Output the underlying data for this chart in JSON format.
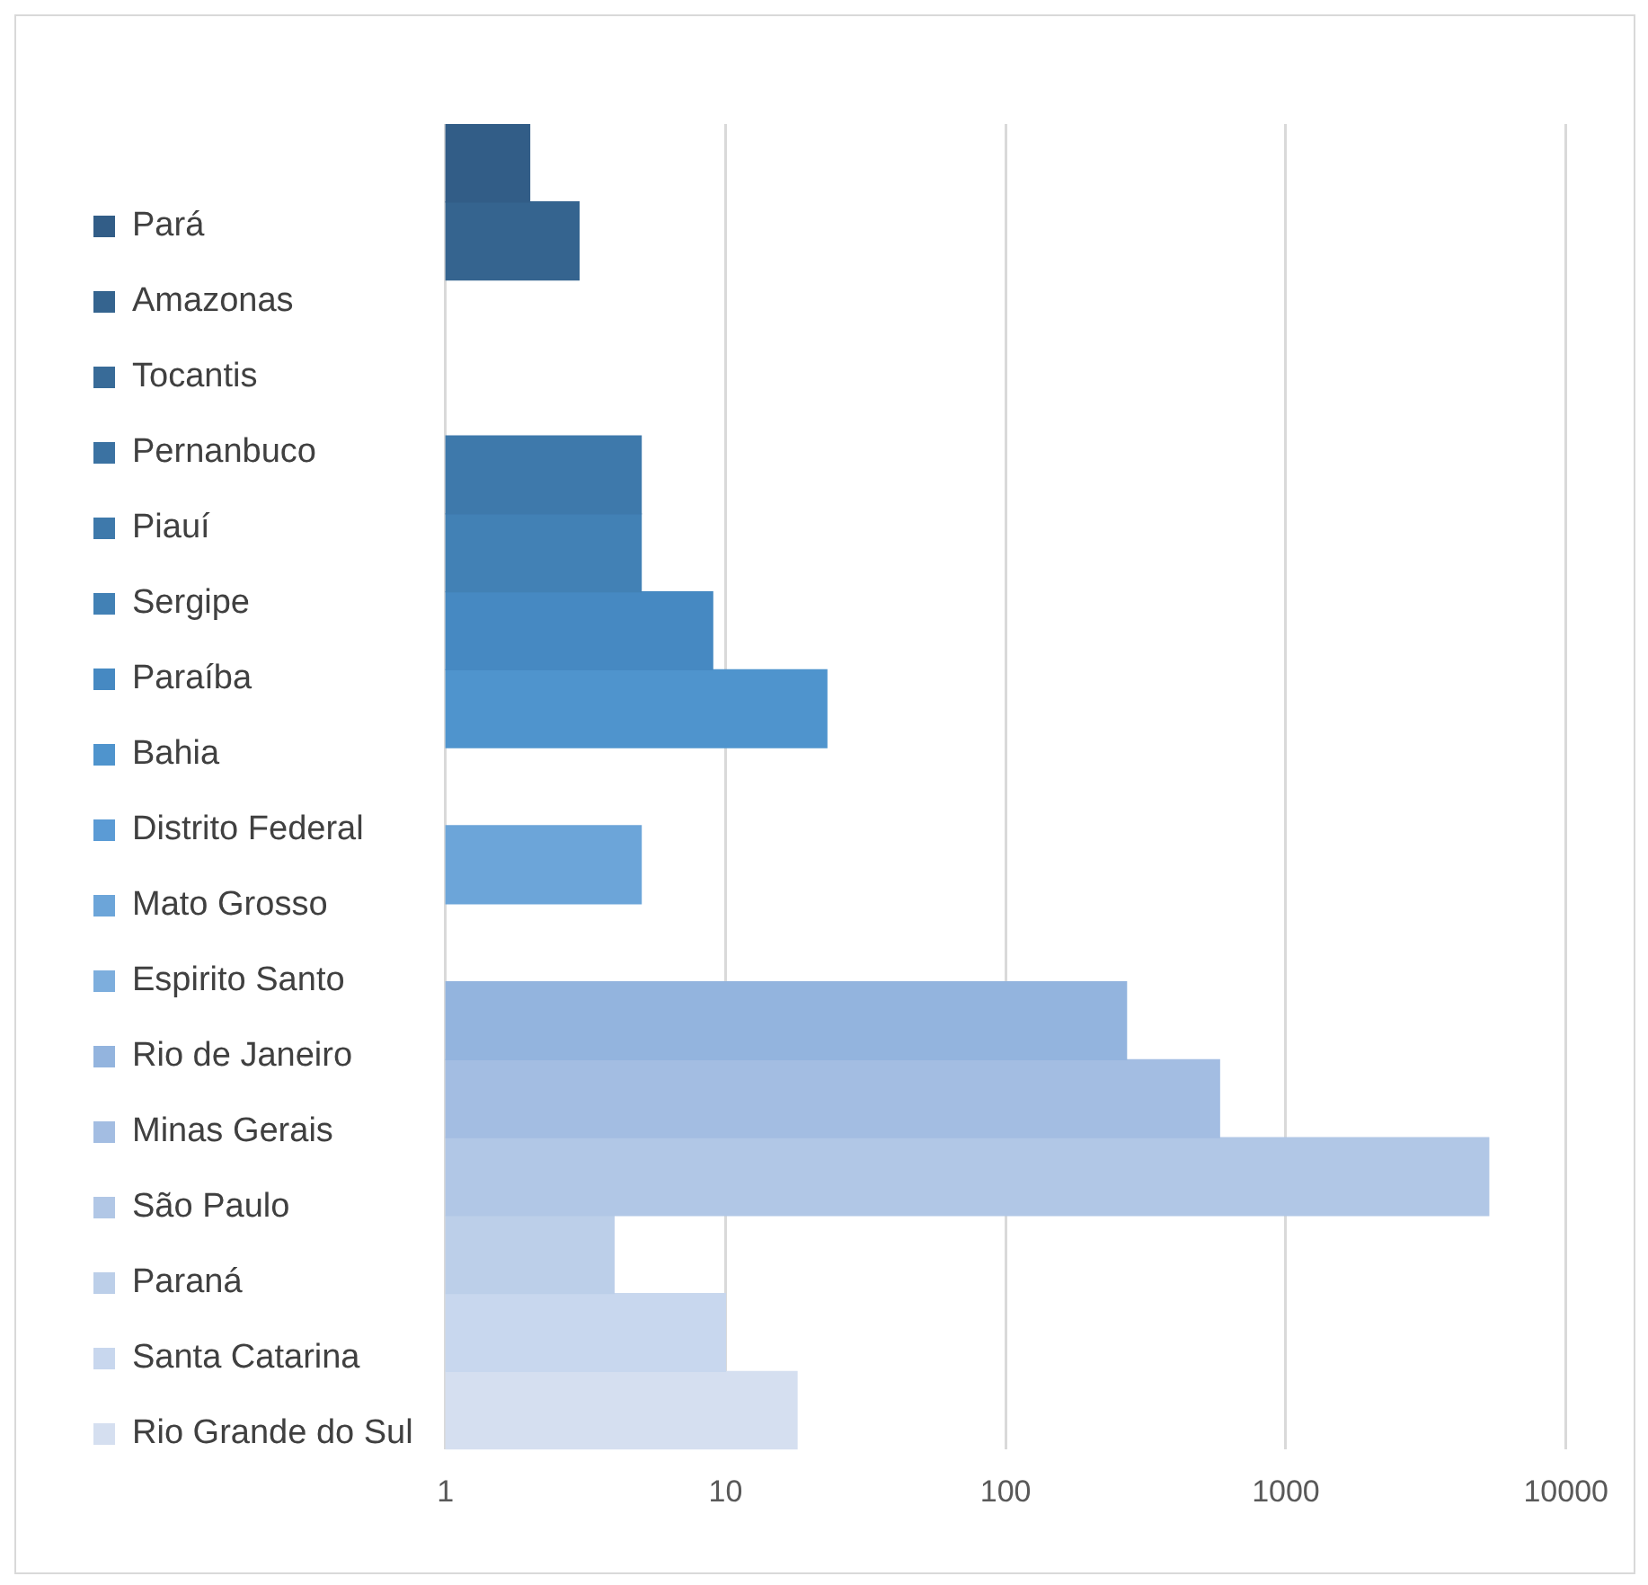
{
  "chart_data": {
    "type": "bar",
    "orientation": "horizontal",
    "log": "x",
    "categories": [
      null
    ],
    "series": [
      {
        "name": "Pará",
        "color": "#325d87",
        "values": [
          2
        ]
      },
      {
        "name": "Amazonas",
        "color": "#35648f",
        "values": [
          3
        ]
      },
      {
        "name": "Tocantis",
        "color": "#386b98",
        "values": [
          null
        ]
      },
      {
        "name": "Pernanbuco",
        "color": "#3b72a2",
        "values": [
          null
        ]
      },
      {
        "name": "Piauí",
        "color": "#3e79ab",
        "values": [
          5
        ]
      },
      {
        "name": "Sergipe",
        "color": "#4281b5",
        "values": [
          5
        ]
      },
      {
        "name": "Paraíba",
        "color": "#4689c2",
        "values": [
          9
        ]
      },
      {
        "name": "Bahia",
        "color": "#4f94cd",
        "values": [
          23
        ]
      },
      {
        "name": "Distrito Federal",
        "color": "#5b9bd5",
        "values": [
          null
        ]
      },
      {
        "name": "Mato Grosso",
        "color": "#6ca5d9",
        "values": [
          5
        ]
      },
      {
        "name": "Espirito Santo",
        "color": "#7daedd",
        "values": [
          null
        ]
      },
      {
        "name": "Rio de Janeiro",
        "color": "#93b4de",
        "values": [
          270
        ]
      },
      {
        "name": "Minas Gerais",
        "color": "#a3bde2",
        "values": [
          580
        ]
      },
      {
        "name": "São Paulo",
        "color": "#b1c7e6",
        "values": [
          5300
        ]
      },
      {
        "name": "Paraná",
        "color": "#bccfe9",
        "values": [
          4
        ]
      },
      {
        "name": "Santa Catarina",
        "color": "#c8d7ee",
        "values": [
          10
        ]
      },
      {
        "name": "Rio Grande do Sul",
        "color": "#d5dff0",
        "values": [
          18
        ]
      }
    ],
    "xlim": [
      1,
      10000
    ],
    "xticks": [
      1,
      10,
      100,
      1000,
      10000
    ],
    "grid": "x",
    "legend": "left",
    "tick_labels": "x"
  }
}
